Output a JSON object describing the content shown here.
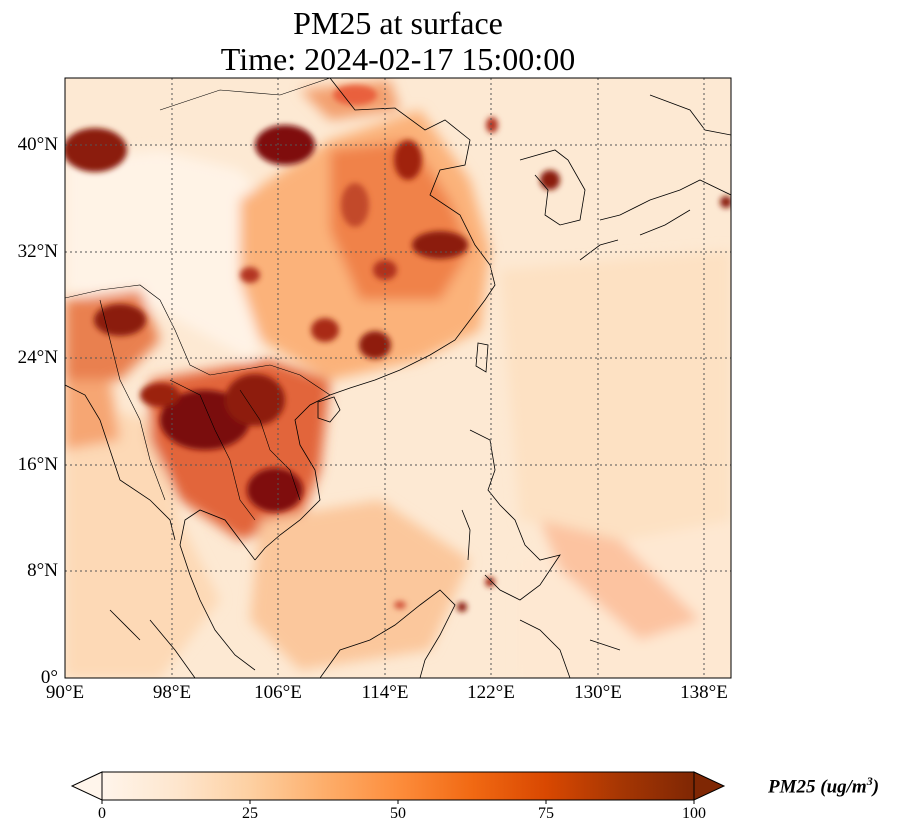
{
  "title_line1": "PM25 at surface",
  "title_line2": "Time: 2024-02-17 15:00:00",
  "lat_labels": [
    "0°",
    "8°N",
    "16°N",
    "24°N",
    "32°N",
    "40°N"
  ],
  "lon_labels": [
    "90°E",
    "98°E",
    "106°E",
    "114°E",
    "122°E",
    "130°E",
    "138°E"
  ],
  "extent": {
    "lon_min": 90,
    "lon_max": 140,
    "lat_min": 0,
    "lat_max": 45
  },
  "colorbar": {
    "title": "PM25 (ug/m",
    "title_sup": "3",
    "title_close": ")",
    "ticks": [
      "0",
      "25",
      "50",
      "75",
      "100"
    ],
    "range": [
      0,
      100
    ],
    "extend": "both",
    "colormap": [
      "#fff5eb",
      "#fee6ce",
      "#fdd0a2",
      "#fdae6b",
      "#fd8d3c",
      "#f16913",
      "#d94801",
      "#a63603",
      "#7f2704"
    ]
  }
}
